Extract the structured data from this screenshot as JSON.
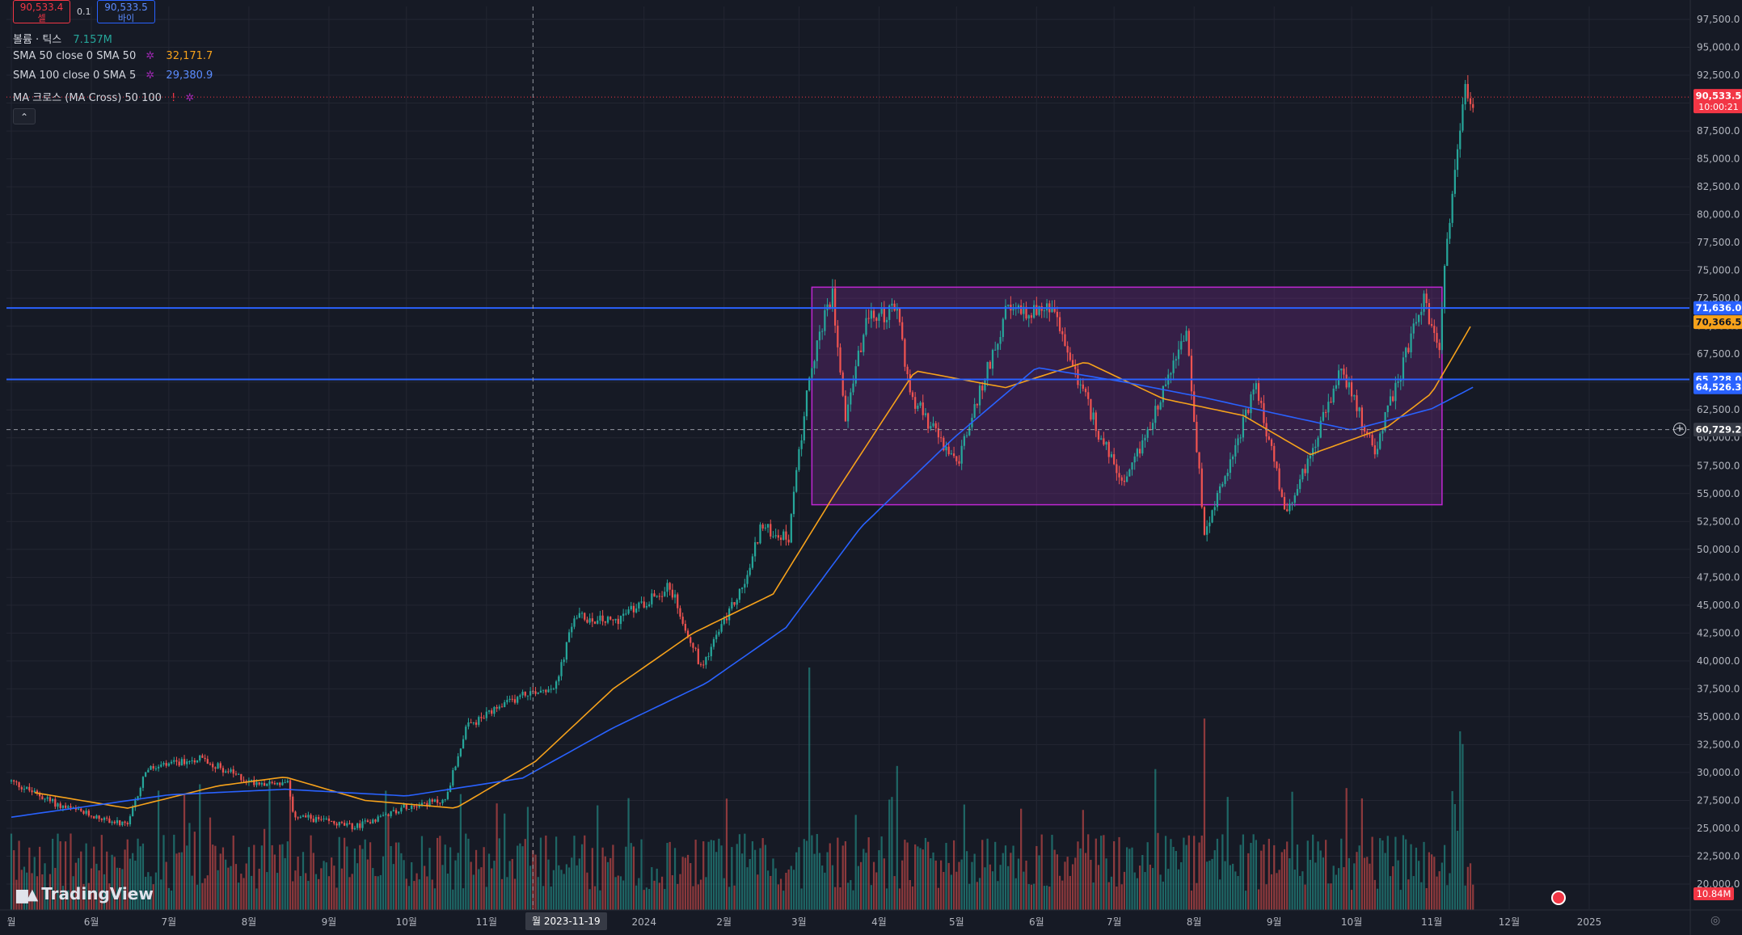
{
  "trade": {
    "sell_price": "90,533.4",
    "sell_label": "셀",
    "spread": "0.1",
    "buy_price": "90,533.5",
    "buy_label": "바이"
  },
  "legend": {
    "volume_label": "볼륨 · 틱스",
    "volume_value": "7.157M",
    "sma50_label": "SMA 50 close 0 SMA 50",
    "sma50_value": "32,171.7",
    "sma100_label": "SMA 100 close 0 SMA 5",
    "sma100_value": "29,380.9",
    "macross_label": "MA 크로스 (MA Cross) 50 100"
  },
  "colors": {
    "background": "#161a25",
    "up": "#26a69a",
    "down": "#ef5350",
    "sma50": "#f7a21b",
    "sma100": "#2962ff",
    "hline": "#2962ff",
    "box_fill": "#7b2d8f",
    "box_border": "#c026d3",
    "last_price": "#f23645"
  },
  "icons": [
    "gear-icon",
    "chevron-up-icon",
    "tradingview-logo-icon",
    "plus-circle-icon",
    "flag-icon",
    "reset-icon"
  ],
  "logo_text": "TradingView",
  "crosshair_date": "월 2023-11-19",
  "chart_data": {
    "type": "candlestick",
    "y_range": [
      18750,
      97500
    ],
    "y_ticks": [
      20000,
      22500,
      25000,
      27500,
      30000,
      32500,
      35000,
      37500,
      40000,
      42500,
      45000,
      47500,
      50000,
      52500,
      55000,
      57500,
      60000,
      62500,
      65000,
      67500,
      70000,
      72500,
      75000,
      77500,
      80000,
      82500,
      85000,
      87500,
      90000,
      92500,
      95000,
      97500
    ],
    "y_tick_labels": [
      "20,000.0",
      "22,500.0",
      "25,000.0",
      "27,500.0",
      "30,000.0",
      "32,500.0",
      "35,000.0",
      "37,500.0",
      "40,000.0",
      "42,500.0",
      "45,000.0",
      "47,500.0",
      "50,000.0",
      "52,500.0",
      "55,000.0",
      "57,500.0",
      "60,000.0",
      "62,500.0",
      "65,000.0",
      "67,500.0",
      "70,000.0",
      "72,500.0",
      "75,000.0",
      "77,500.0",
      "80,000.0",
      "82,500.0",
      "85,000.0",
      "87,500.0",
      "90,000.0",
      "92,500.0",
      "95,000.0",
      "97,500.0"
    ],
    "x_range": [
      "2023-04-30",
      "2025-01-02"
    ],
    "x_ticks": [
      {
        "label": "월",
        "date": "2023-05-01"
      },
      {
        "label": "6월",
        "date": "2023-06-01"
      },
      {
        "label": "7월",
        "date": "2023-07-01"
      },
      {
        "label": "8월",
        "date": "2023-08-01"
      },
      {
        "label": "9월",
        "date": "2023-09-01"
      },
      {
        "label": "10월",
        "date": "2023-10-01"
      },
      {
        "label": "11월",
        "date": "2023-11-01"
      },
      {
        "label": "2024",
        "date": "2024-01-01"
      },
      {
        "label": "2월",
        "date": "2024-02-01"
      },
      {
        "label": "3월",
        "date": "2024-03-01"
      },
      {
        "label": "4월",
        "date": "2024-04-01"
      },
      {
        "label": "5월",
        "date": "2024-05-01"
      },
      {
        "label": "6월",
        "date": "2024-06-01"
      },
      {
        "label": "7월",
        "date": "2024-07-01"
      },
      {
        "label": "8월",
        "date": "2024-08-01"
      },
      {
        "label": "9월",
        "date": "2024-09-01"
      },
      {
        "label": "10월",
        "date": "2024-10-01"
      },
      {
        "label": "11월",
        "date": "2024-11-01"
      },
      {
        "label": "12월",
        "date": "2024-12-01"
      },
      {
        "label": "2025",
        "date": "2025-01-01"
      }
    ],
    "price_path": [
      [
        "2023-05-01",
        29200
      ],
      [
        "2023-05-20",
        27000
      ],
      [
        "2023-06-15",
        25200
      ],
      [
        "2023-06-22",
        30200
      ],
      [
        "2023-07-13",
        31300
      ],
      [
        "2023-08-01",
        29200
      ],
      [
        "2023-08-16",
        29000
      ],
      [
        "2023-08-18",
        26200
      ],
      [
        "2023-09-11",
        25100
      ],
      [
        "2023-10-01",
        27000
      ],
      [
        "2023-10-16",
        27500
      ],
      [
        "2023-10-24",
        34000
      ],
      [
        "2023-11-15",
        37000
      ],
      [
        "2023-11-28",
        37800
      ],
      [
        "2023-12-05",
        44000
      ],
      [
        "2023-12-20",
        43500
      ],
      [
        "2024-01-11",
        46700
      ],
      [
        "2024-01-23",
        39500
      ],
      [
        "2024-02-10",
        47500
      ],
      [
        "2024-02-15",
        52000
      ],
      [
        "2024-02-26",
        51000
      ],
      [
        "2024-03-05",
        66000
      ],
      [
        "2024-03-14",
        73000
      ],
      [
        "2024-03-19",
        62000
      ],
      [
        "2024-03-27",
        70500
      ],
      [
        "2024-04-08",
        71500
      ],
      [
        "2024-04-13",
        64000
      ],
      [
        "2024-05-01",
        57500
      ],
      [
        "2024-05-20",
        71200
      ],
      [
        "2024-06-07",
        71500
      ],
      [
        "2024-06-24",
        61000
      ],
      [
        "2024-07-05",
        55500
      ],
      [
        "2024-07-29",
        69500
      ],
      [
        "2024-08-05",
        51500
      ],
      [
        "2024-08-25",
        64500
      ],
      [
        "2024-09-06",
        53000
      ],
      [
        "2024-09-27",
        66000
      ],
      [
        "2024-10-10",
        58800
      ],
      [
        "2024-10-29",
        72400
      ],
      [
        "2024-11-04",
        67500
      ],
      [
        "2024-11-06",
        75500
      ],
      [
        "2024-11-12",
        88500
      ],
      [
        "2024-11-14",
        91700
      ],
      [
        "2024-11-17",
        90500
      ]
    ],
    "sma50_path": [
      [
        "2023-05-10",
        28200
      ],
      [
        "2023-06-15",
        26800
      ],
      [
        "2023-07-20",
        28800
      ],
      [
        "2023-08-15",
        29600
      ],
      [
        "2023-09-15",
        27500
      ],
      [
        "2023-10-20",
        26800
      ],
      [
        "2023-11-20",
        31000
      ],
      [
        "2023-12-20",
        37500
      ],
      [
        "2024-01-20",
        42500
      ],
      [
        "2024-02-20",
        46000
      ],
      [
        "2024-03-15",
        55000
      ],
      [
        "2024-04-15",
        66000
      ],
      [
        "2024-05-20",
        64500
      ],
      [
        "2024-06-20",
        66800
      ],
      [
        "2024-07-20",
        63500
      ],
      [
        "2024-08-20",
        62000
      ],
      [
        "2024-09-15",
        58500
      ],
      [
        "2024-10-15",
        61000
      ],
      [
        "2024-11-01",
        64000
      ],
      [
        "2024-11-17",
        70366.5
      ]
    ],
    "sma100_path": [
      [
        "2023-05-01",
        26000
      ],
      [
        "2023-07-01",
        28000
      ],
      [
        "2023-08-15",
        28500
      ],
      [
        "2023-10-01",
        27900
      ],
      [
        "2023-11-15",
        29500
      ],
      [
        "2023-12-20",
        34000
      ],
      [
        "2024-01-25",
        38000
      ],
      [
        "2024-02-25",
        43000
      ],
      [
        "2024-03-25",
        52000
      ],
      [
        "2024-04-30",
        60000
      ],
      [
        "2024-06-01",
        66300
      ],
      [
        "2024-07-05",
        65000
      ],
      [
        "2024-08-05",
        63600
      ],
      [
        "2024-09-05",
        62000
      ],
      [
        "2024-10-01",
        60700
      ],
      [
        "2024-11-01",
        62600
      ],
      [
        "2024-11-17",
        64526.3
      ]
    ],
    "volume_max_millions": 38,
    "volume_spikes": [
      {
        "date": "2024-03-05",
        "value": 38
      },
      {
        "date": "2024-08-05",
        "value": 30
      },
      {
        "date": "2024-11-12",
        "value": 28
      },
      {
        "date": "2024-11-13",
        "value": 26
      }
    ],
    "annotations": {
      "range_box": {
        "start": "2024-03-06",
        "end": "2024-11-05",
        "top": 73500,
        "bottom": 54000
      },
      "hlines": [
        71636.0,
        65228.0
      ],
      "crosshair": {
        "date": "2023-11-19",
        "price": 60729.2
      },
      "last_price": 90533.5
    },
    "axis_labels": [
      {
        "value": 90533.5,
        "text": "90,533.5",
        "sub": "10:00:21",
        "bg": "#f23645"
      },
      {
        "value": 71636.0,
        "text": "71,636.0",
        "bg": "#2962ff"
      },
      {
        "value": 70366.5,
        "text": "70,366.5",
        "bg": "#f7a21b",
        "dark": true
      },
      {
        "value": 65228.0,
        "text": "65,228.0",
        "bg": "#2962ff"
      },
      {
        "value": 64526.3,
        "text": "64,526.3",
        "bg": "#2962ff"
      },
      {
        "value": 60729.2,
        "text": "60,729.2",
        "bg": "#363a45"
      }
    ],
    "volume_label": "10.84M"
  }
}
